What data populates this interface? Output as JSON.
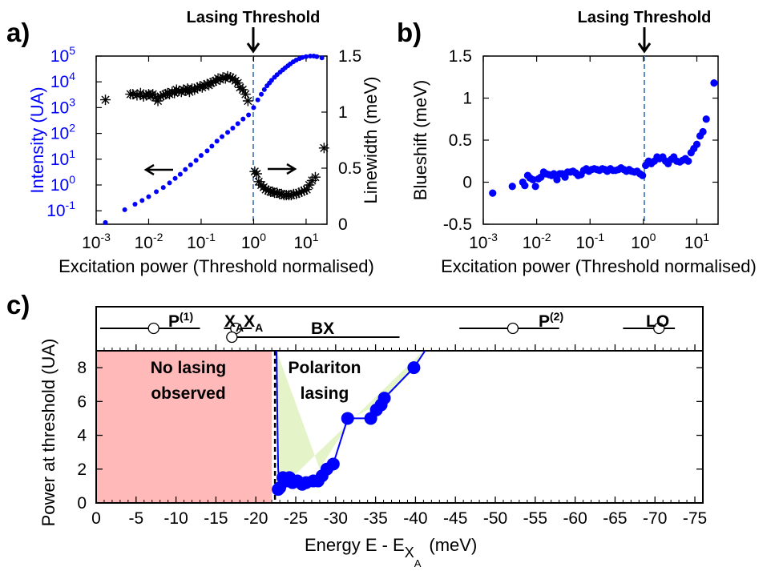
{
  "chart_data": [
    {
      "id": "a",
      "panel_label": "a)",
      "type": "scatter",
      "threshold_label": "Lasing Threshold",
      "threshold_x": 1,
      "xlabel": "Excitation power (Threshold normalised)",
      "xscale": "log",
      "xlim": [
        0.001,
        25
      ],
      "xticks": [
        {
          "v": 0.001,
          "m": "10",
          "e": "-3"
        },
        {
          "v": 0.01,
          "m": "10",
          "e": "-2"
        },
        {
          "v": 0.1,
          "m": "10",
          "e": "-1"
        },
        {
          "v": 1,
          "m": "10",
          "e": "0"
        },
        {
          "v": 10,
          "m": "10",
          "e": "1"
        }
      ],
      "ylabel_left": "Intensity (UA)",
      "yscale_left": "log",
      "ylim_left": [
        0.03,
        100000
      ],
      "yticks_left": [
        {
          "v": 0.1,
          "m": "10",
          "e": "-1"
        },
        {
          "v": 1,
          "m": "10",
          "e": "0"
        },
        {
          "v": 10,
          "m": "10",
          "e": "1"
        },
        {
          "v": 100,
          "m": "10",
          "e": "2"
        },
        {
          "v": 1000,
          "m": "10",
          "e": "3"
        },
        {
          "v": 10000,
          "m": "10",
          "e": "4"
        },
        {
          "v": 100000,
          "m": "10",
          "e": "5"
        }
      ],
      "ylabel_right": "Linewidth (meV)",
      "ylim_right": [
        0,
        1.5
      ],
      "yticks_right": [
        {
          "v": 0,
          "t": "0"
        },
        {
          "v": 0.5,
          "t": "0.5"
        },
        {
          "v": 1,
          "t": "1"
        },
        {
          "v": 1.5,
          "t": "1.5"
        }
      ],
      "arrow_left_note": "Intensity axis (left)",
      "arrow_right_note": "Linewidth axis (right)",
      "series": [
        {
          "name": "Intensity",
          "axis": "left",
          "color": "#0000ff",
          "marker": "dot",
          "x": [
            0.0015,
            0.0035,
            0.0055,
            0.0075,
            0.01,
            0.014,
            0.019,
            0.025,
            0.032,
            0.04,
            0.05,
            0.063,
            0.08,
            0.1,
            0.13,
            0.16,
            0.2,
            0.25,
            0.32,
            0.4,
            0.5,
            0.63,
            0.8,
            1.0,
            1.2,
            1.4,
            1.6,
            1.8,
            2.0,
            2.2,
            2.5,
            2.8,
            3.2,
            3.6,
            4.0,
            4.5,
            5.0,
            5.7,
            6.5,
            7.5,
            8.5,
            10,
            12,
            14,
            16,
            20
          ],
          "y": [
            0.035,
            0.11,
            0.18,
            0.25,
            0.35,
            0.55,
            0.8,
            1.2,
            1.8,
            2.6,
            4,
            6,
            9,
            14,
            21,
            32,
            50,
            75,
            110,
            160,
            240,
            360,
            520,
            1000,
            2000,
            3300,
            5000,
            7000,
            9000,
            11500,
            15000,
            19000,
            24000,
            29000,
            35000,
            42000,
            50000,
            60000,
            70000,
            80000,
            88000,
            95000,
            100000,
            100000,
            95000,
            85000
          ]
        },
        {
          "name": "Linewidth",
          "axis": "right",
          "color": "#000000",
          "marker": "star",
          "x": [
            0.0015,
            0.0045,
            0.005,
            0.006,
            0.007,
            0.008,
            0.009,
            0.01,
            0.011,
            0.012,
            0.0135,
            0.015,
            0.017,
            0.019,
            0.021,
            0.023,
            0.025,
            0.028,
            0.031,
            0.034,
            0.038,
            0.042,
            0.046,
            0.05,
            0.055,
            0.06,
            0.067,
            0.075,
            0.085,
            0.095,
            0.105,
            0.115,
            0.13,
            0.14,
            0.155,
            0.17,
            0.19,
            0.21,
            0.23,
            0.26,
            0.29,
            0.32,
            0.36,
            0.4,
            0.45,
            0.5,
            0.55,
            0.62,
            0.7,
            0.78,
            1.05,
            1.15,
            1.25,
            1.4,
            1.55,
            1.7,
            1.9,
            2.1,
            2.3,
            2.5,
            2.8,
            3.1,
            3.4,
            3.8,
            4.2,
            4.7,
            5.2,
            5.8,
            6.5,
            7.3,
            8.2,
            9.2,
            10.3,
            11.5,
            13,
            15,
            22
          ],
          "y": [
            1.11,
            1.16,
            1.16,
            1.15,
            1.17,
            1.14,
            1.15,
            1.16,
            1.15,
            1.16,
            1.13,
            1.1,
            1.14,
            1.15,
            1.16,
            1.17,
            1.16,
            1.18,
            1.17,
            1.2,
            1.19,
            1.18,
            1.2,
            1.19,
            1.21,
            1.18,
            1.21,
            1.2,
            1.22,
            1.23,
            1.22,
            1.24,
            1.25,
            1.24,
            1.26,
            1.27,
            1.28,
            1.3,
            1.29,
            1.31,
            1.3,
            1.32,
            1.31,
            1.3,
            1.28,
            1.26,
            1.22,
            1.2,
            1.16,
            1.1,
            0.47,
            0.45,
            0.38,
            0.35,
            0.33,
            0.31,
            0.3,
            0.29,
            0.29,
            0.28,
            0.28,
            0.27,
            0.27,
            0.26,
            0.26,
            0.26,
            0.26,
            0.27,
            0.27,
            0.28,
            0.29,
            0.3,
            0.31,
            0.35,
            0.39,
            0.42,
            0.68
          ]
        }
      ]
    },
    {
      "id": "b",
      "panel_label": "b)",
      "type": "scatter",
      "threshold_label": "Lasing Threshold",
      "threshold_x": 1,
      "xlabel": "Excitation power (Threshold normalised)",
      "xscale": "log",
      "xlim": [
        0.001,
        25
      ],
      "xticks": [
        {
          "v": 0.001,
          "m": "10",
          "e": "-3"
        },
        {
          "v": 0.01,
          "m": "10",
          "e": "-2"
        },
        {
          "v": 0.1,
          "m": "10",
          "e": "-1"
        },
        {
          "v": 1,
          "m": "10",
          "e": "0"
        },
        {
          "v": 10,
          "m": "10",
          "e": "1"
        }
      ],
      "ylabel": "Blueshift (meV)",
      "ylim": [
        -0.5,
        1.5
      ],
      "yticks": [
        {
          "v": -0.5,
          "t": "-0.5"
        },
        {
          "v": 0,
          "t": "0"
        },
        {
          "v": 0.5,
          "t": "0.5"
        },
        {
          "v": 1,
          "t": "1"
        },
        {
          "v": 1.5,
          "t": "1.5"
        }
      ],
      "series": [
        {
          "name": "Blueshift",
          "color": "#0000ff",
          "x": [
            0.0015,
            0.0035,
            0.0055,
            0.006,
            0.0068,
            0.0075,
            0.0085,
            0.0095,
            0.0108,
            0.012,
            0.0135,
            0.015,
            0.017,
            0.019,
            0.021,
            0.024,
            0.027,
            0.03,
            0.034,
            0.038,
            0.043,
            0.048,
            0.054,
            0.06,
            0.068,
            0.076,
            0.085,
            0.095,
            0.107,
            0.12,
            0.135,
            0.15,
            0.17,
            0.19,
            0.21,
            0.24,
            0.27,
            0.3,
            0.34,
            0.38,
            0.43,
            0.48,
            0.54,
            0.6,
            0.68,
            0.76,
            0.86,
            0.96,
            1.1,
            1.25,
            1.4,
            1.6,
            1.8,
            2.0,
            2.3,
            2.6,
            2.9,
            3.3,
            3.7,
            4.2,
            4.8,
            5.4,
            6.1,
            6.9,
            7.8,
            8.8,
            10,
            11.5,
            13,
            15,
            21
          ],
          "y": [
            -0.13,
            -0.05,
            0.0,
            -0.04,
            0.08,
            0.05,
            0.03,
            -0.05,
            0.04,
            0.06,
            0.12,
            0.1,
            0.09,
            0.08,
            0.1,
            0.03,
            0.1,
            0.1,
            0.06,
            0.12,
            0.12,
            0.13,
            0.11,
            0.08,
            0.09,
            0.14,
            0.16,
            0.13,
            0.15,
            0.16,
            0.15,
            0.14,
            0.16,
            0.15,
            0.13,
            0.16,
            0.14,
            0.14,
            0.15,
            0.17,
            0.15,
            0.13,
            0.15,
            0.13,
            0.12,
            0.13,
            0.1,
            0.08,
            0.2,
            0.25,
            0.22,
            0.25,
            0.3,
            0.28,
            0.3,
            0.25,
            0.22,
            0.27,
            0.3,
            0.25,
            0.24,
            0.26,
            0.28,
            0.25,
            0.35,
            0.4,
            0.45,
            0.55,
            0.6,
            0.75,
            1.18
          ]
        }
      ]
    },
    {
      "id": "c",
      "panel_label": "c)",
      "type": "scatter",
      "xlabel": "Energy E - E",
      "xlabel_sub_main": "X",
      "xlabel_sub_sub": "A",
      "xlabel_unit": "(meV)",
      "xlim": [
        0,
        76
      ],
      "x_reversed_sign_labels": true,
      "xticks": [
        {
          "v": 0,
          "t": "0"
        },
        {
          "v": 5,
          "t": "-5"
        },
        {
          "v": 10,
          "t": "-10"
        },
        {
          "v": 15,
          "t": "-15"
        },
        {
          "v": 20,
          "t": "-20"
        },
        {
          "v": 25,
          "t": "-25"
        },
        {
          "v": 30,
          "t": "-30"
        },
        {
          "v": 35,
          "t": "-35"
        },
        {
          "v": 40,
          "t": "-40"
        },
        {
          "v": 45,
          "t": "-45"
        },
        {
          "v": 50,
          "t": "-50"
        },
        {
          "v": 55,
          "t": "-55"
        },
        {
          "v": 60,
          "t": "-60"
        },
        {
          "v": 65,
          "t": "-65"
        },
        {
          "v": 70,
          "t": "-70"
        },
        {
          "v": 75,
          "t": "-75"
        }
      ],
      "ylabel": "Power at threshold (UA)",
      "ylim": [
        0,
        9
      ],
      "yticks": [
        {
          "v": 0,
          "t": "0"
        },
        {
          "v": 2,
          "t": "2"
        },
        {
          "v": 4,
          "t": "4"
        },
        {
          "v": 6,
          "t": "6"
        },
        {
          "v": 8,
          "t": "8"
        }
      ],
      "regions": [
        {
          "name": "No lasing",
          "label_lines": [
            "No lasing",
            "observed"
          ],
          "x_from": 0,
          "x_to": 22,
          "color": "#ff8080",
          "alpha": 0.55
        },
        {
          "name": "Polariton lasing",
          "label_lines": [
            "Polariton",
            "lasing"
          ],
          "polygon_x": [
            22.6,
            23,
            41,
            40,
            36,
            32,
            28
          ],
          "polygon_y": [
            9,
            0.8,
            9,
            8,
            6,
            5,
            2
          ],
          "color": "#d9efb0",
          "alpha": 0.7
        }
      ],
      "boundary_x": 22.4,
      "series": [
        {
          "name": "Threshold power",
          "color": "#0000ff",
          "x": [
            22.8,
            23.0,
            23.4,
            23.8,
            24.2,
            24.6,
            25.2,
            25.8,
            26.3,
            27.2,
            27.8,
            28.3,
            28.9,
            29.7,
            31.5,
            34.4,
            35.1,
            35.7,
            36.1,
            39.8
          ],
          "y": [
            0.8,
            0.9,
            1.5,
            1.3,
            1.5,
            1.2,
            1.3,
            1.1,
            1.2,
            1.3,
            1.3,
            1.6,
            2.0,
            2.3,
            5.0,
            5.0,
            5.5,
            5.8,
            6.2,
            8.0
          ]
        }
      ],
      "boundary_curve": {
        "x": [
          22.6,
          22.7,
          22.8,
          23.0
        ],
        "y": [
          9,
          5,
          2,
          0.8
        ]
      },
      "reference_lines": [
        {
          "label": "P",
          "sup": "(1)",
          "x_from": 0.5,
          "x_to": 13.0,
          "center": 7.2,
          "row": 1
        },
        {
          "label": "X",
          "sub": "A",
          "label2": "X",
          "sub2": "A",
          "x_from": 16.0,
          "x_to": 19.5,
          "center": 17.5,
          "row": 1
        },
        {
          "label": "BX",
          "x_from": 16.5,
          "x_to": 38.0,
          "center": 17.0,
          "row": 2
        },
        {
          "label": "P",
          "sup": "(2)",
          "x_from": 45.5,
          "x_to": 58.0,
          "center": 52.2,
          "row": 1
        },
        {
          "label": "LO",
          "x_from": 66.0,
          "x_to": 72.5,
          "center": 70.5,
          "row": 1
        }
      ]
    }
  ]
}
